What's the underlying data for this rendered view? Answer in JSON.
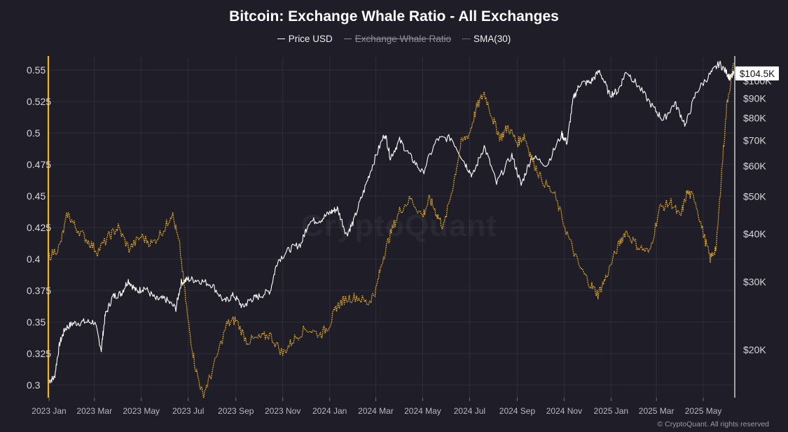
{
  "chart_data": {
    "type": "line",
    "title": "Bitcoin: Exchange Whale Ratio - All Exchanges",
    "legend_position": "top-center",
    "legend": [
      {
        "label": "Price USD",
        "color": "#ffffff",
        "style": "solid",
        "hidden": false
      },
      {
        "label": "Exchange Whale Ratio",
        "color": "#8e8e98",
        "style": "solid",
        "hidden": true
      },
      {
        "label": "SMA(30)",
        "color": "#f2b21c",
        "style": "dotted",
        "hidden": false
      }
    ],
    "x_ticks": [
      "2023 Jan",
      "2023 Mar",
      "2023 May",
      "2023 Jul",
      "2023 Sep",
      "2023 Nov",
      "2024 Jan",
      "2024 Mar",
      "2024 May",
      "2024 Jul",
      "2024 Sep",
      "2024 Nov",
      "2025 Jan",
      "2025 Mar",
      "2025 May"
    ],
    "x_range": [
      "2023-01-01",
      "2025-06-10"
    ],
    "y_left": {
      "ticks": [
        "0.55",
        "0.525",
        "0.5",
        "0.475",
        "0.45",
        "0.425",
        "0.4",
        "0.375",
        "0.35",
        "0.325",
        "0.3"
      ],
      "range": [
        0.29,
        0.56
      ]
    },
    "y_right": {
      "scale": "log",
      "ticks": [
        "$100K",
        "$90K",
        "$80K",
        "$70K",
        "$60K",
        "$50K",
        "$40K",
        "$30K",
        "$20K"
      ],
      "tick_values": [
        100000,
        90000,
        80000,
        70000,
        60000,
        50000,
        40000,
        30000,
        20000
      ],
      "range": [
        15000,
        115000
      ],
      "current_label": "$104.5K"
    },
    "grid": true,
    "series": [
      {
        "name": "Price USD",
        "axis": "right",
        "points": [
          [
            "2023-01-01",
            16600
          ],
          [
            "2023-01-08",
            16900
          ],
          [
            "2023-01-15",
            20800
          ],
          [
            "2023-01-22",
            22700
          ],
          [
            "2023-02-01",
            23400
          ],
          [
            "2023-02-15",
            23600
          ],
          [
            "2023-03-01",
            23600
          ],
          [
            "2023-03-10",
            20000
          ],
          [
            "2023-03-15",
            24500
          ],
          [
            "2023-03-25",
            27500
          ],
          [
            "2023-04-05",
            28000
          ],
          [
            "2023-04-14",
            30300
          ],
          [
            "2023-04-25",
            28300
          ],
          [
            "2023-05-05",
            29000
          ],
          [
            "2023-05-20",
            27000
          ],
          [
            "2023-06-01",
            27100
          ],
          [
            "2023-06-15",
            25600
          ],
          [
            "2023-06-22",
            29900
          ],
          [
            "2023-07-01",
            30500
          ],
          [
            "2023-07-15",
            30300
          ],
          [
            "2023-08-01",
            29500
          ],
          [
            "2023-08-17",
            26600
          ],
          [
            "2023-08-29",
            27700
          ],
          [
            "2023-09-10",
            25800
          ],
          [
            "2023-09-20",
            27000
          ],
          [
            "2023-10-01",
            27500
          ],
          [
            "2023-10-16",
            28500
          ],
          [
            "2023-10-25",
            34000
          ],
          [
            "2023-11-10",
            36500
          ],
          [
            "2023-11-25",
            37700
          ],
          [
            "2023-12-05",
            43000
          ],
          [
            "2023-12-20",
            43500
          ],
          [
            "2024-01-02",
            45500
          ],
          [
            "2024-01-11",
            46500
          ],
          [
            "2024-01-23",
            39800
          ],
          [
            "2024-02-01",
            43000
          ],
          [
            "2024-02-15",
            52000
          ],
          [
            "2024-02-28",
            62000
          ],
          [
            "2024-03-13",
            73000
          ],
          [
            "2024-03-20",
            63000
          ],
          [
            "2024-04-01",
            70000
          ],
          [
            "2024-04-15",
            63500
          ],
          [
            "2024-05-01",
            57500
          ],
          [
            "2024-05-20",
            70500
          ],
          [
            "2024-06-07",
            71000
          ],
          [
            "2024-06-25",
            61000
          ],
          [
            "2024-07-05",
            56500
          ],
          [
            "2024-07-20",
            67500
          ],
          [
            "2024-08-05",
            54000
          ],
          [
            "2024-08-25",
            64000
          ],
          [
            "2024-09-06",
            53500
          ],
          [
            "2024-09-20",
            63500
          ],
          [
            "2024-10-10",
            60500
          ],
          [
            "2024-10-29",
            72500
          ],
          [
            "2024-11-05",
            69000
          ],
          [
            "2024-11-13",
            90000
          ],
          [
            "2024-11-22",
            98500
          ],
          [
            "2024-12-05",
            99000
          ],
          [
            "2024-12-17",
            106000
          ],
          [
            "2024-12-30",
            92000
          ],
          [
            "2025-01-10",
            94000
          ],
          [
            "2025-01-21",
            106000
          ],
          [
            "2025-02-05",
            97000
          ],
          [
            "2025-02-25",
            85000
          ],
          [
            "2025-03-10",
            79000
          ],
          [
            "2025-03-25",
            87500
          ],
          [
            "2025-04-08",
            76500
          ],
          [
            "2025-04-22",
            93500
          ],
          [
            "2025-05-10",
            104000
          ],
          [
            "2025-05-22",
            111000
          ],
          [
            "2025-06-01",
            104500
          ],
          [
            "2025-06-05",
            101500
          ],
          [
            "2025-06-10",
            104500
          ]
        ]
      },
      {
        "name": "SMA(30)",
        "axis": "left",
        "points": [
          [
            "2023-01-01",
            0.402
          ],
          [
            "2023-01-15",
            0.41
          ],
          [
            "2023-01-25",
            0.436
          ],
          [
            "2023-02-05",
            0.425
          ],
          [
            "2023-02-20",
            0.415
          ],
          [
            "2023-03-05",
            0.406
          ],
          [
            "2023-03-20",
            0.418
          ],
          [
            "2023-04-01",
            0.425
          ],
          [
            "2023-04-15",
            0.408
          ],
          [
            "2023-05-01",
            0.418
          ],
          [
            "2023-05-15",
            0.412
          ],
          [
            "2023-06-01",
            0.425
          ],
          [
            "2023-06-10",
            0.437
          ],
          [
            "2023-06-20",
            0.41
          ],
          [
            "2023-07-01",
            0.35
          ],
          [
            "2023-07-10",
            0.315
          ],
          [
            "2023-07-20",
            0.292
          ],
          [
            "2023-08-01",
            0.31
          ],
          [
            "2023-08-20",
            0.348
          ],
          [
            "2023-09-01",
            0.352
          ],
          [
            "2023-09-15",
            0.335
          ],
          [
            "2023-10-01",
            0.337
          ],
          [
            "2023-10-15",
            0.34
          ],
          [
            "2023-11-01",
            0.325
          ],
          [
            "2023-11-15",
            0.336
          ],
          [
            "2023-12-01",
            0.345
          ],
          [
            "2023-12-20",
            0.34
          ],
          [
            "2024-01-01",
            0.348
          ],
          [
            "2024-01-10",
            0.362
          ],
          [
            "2024-01-20",
            0.368
          ],
          [
            "2024-02-05",
            0.37
          ],
          [
            "2024-02-20",
            0.365
          ],
          [
            "2024-03-01",
            0.375
          ],
          [
            "2024-03-10",
            0.4
          ],
          [
            "2024-03-20",
            0.42
          ],
          [
            "2024-04-01",
            0.438
          ],
          [
            "2024-04-15",
            0.448
          ],
          [
            "2024-05-01",
            0.434
          ],
          [
            "2024-05-10",
            0.448
          ],
          [
            "2024-05-20",
            0.435
          ],
          [
            "2024-05-28",
            0.425
          ],
          [
            "2024-06-10",
            0.46
          ],
          [
            "2024-06-20",
            0.492
          ],
          [
            "2024-07-01",
            0.5
          ],
          [
            "2024-07-10",
            0.52
          ],
          [
            "2024-07-20",
            0.532
          ],
          [
            "2024-08-01",
            0.51
          ],
          [
            "2024-08-10",
            0.496
          ],
          [
            "2024-08-20",
            0.505
          ],
          [
            "2024-09-01",
            0.492
          ],
          [
            "2024-09-10",
            0.498
          ],
          [
            "2024-09-20",
            0.48
          ],
          [
            "2024-10-01",
            0.465
          ],
          [
            "2024-10-20",
            0.45
          ],
          [
            "2024-11-05",
            0.42
          ],
          [
            "2024-11-20",
            0.395
          ],
          [
            "2024-12-05",
            0.38
          ],
          [
            "2024-12-15",
            0.372
          ],
          [
            "2024-12-25",
            0.385
          ],
          [
            "2025-01-10",
            0.41
          ],
          [
            "2025-01-20",
            0.422
          ],
          [
            "2025-02-05",
            0.41
          ],
          [
            "2025-02-20",
            0.405
          ],
          [
            "2025-03-05",
            0.44
          ],
          [
            "2025-03-20",
            0.445
          ],
          [
            "2025-04-01",
            0.433
          ],
          [
            "2025-04-10",
            0.453
          ],
          [
            "2025-04-20",
            0.448
          ],
          [
            "2025-05-01",
            0.42
          ],
          [
            "2025-05-10",
            0.4
          ],
          [
            "2025-05-18",
            0.41
          ],
          [
            "2025-05-25",
            0.47
          ],
          [
            "2025-06-01",
            0.525
          ],
          [
            "2025-06-10",
            0.555
          ]
        ]
      }
    ]
  },
  "footer": {
    "copyright": "© CryptoQuant. All rights reserved"
  },
  "watermark": "CryptoQuant",
  "colors": {
    "background": "#1e1d28",
    "price": "#ffffff",
    "sma": "#f2b21c",
    "grid": "#2f2e3a",
    "axis_text": "#d8d8dc"
  }
}
